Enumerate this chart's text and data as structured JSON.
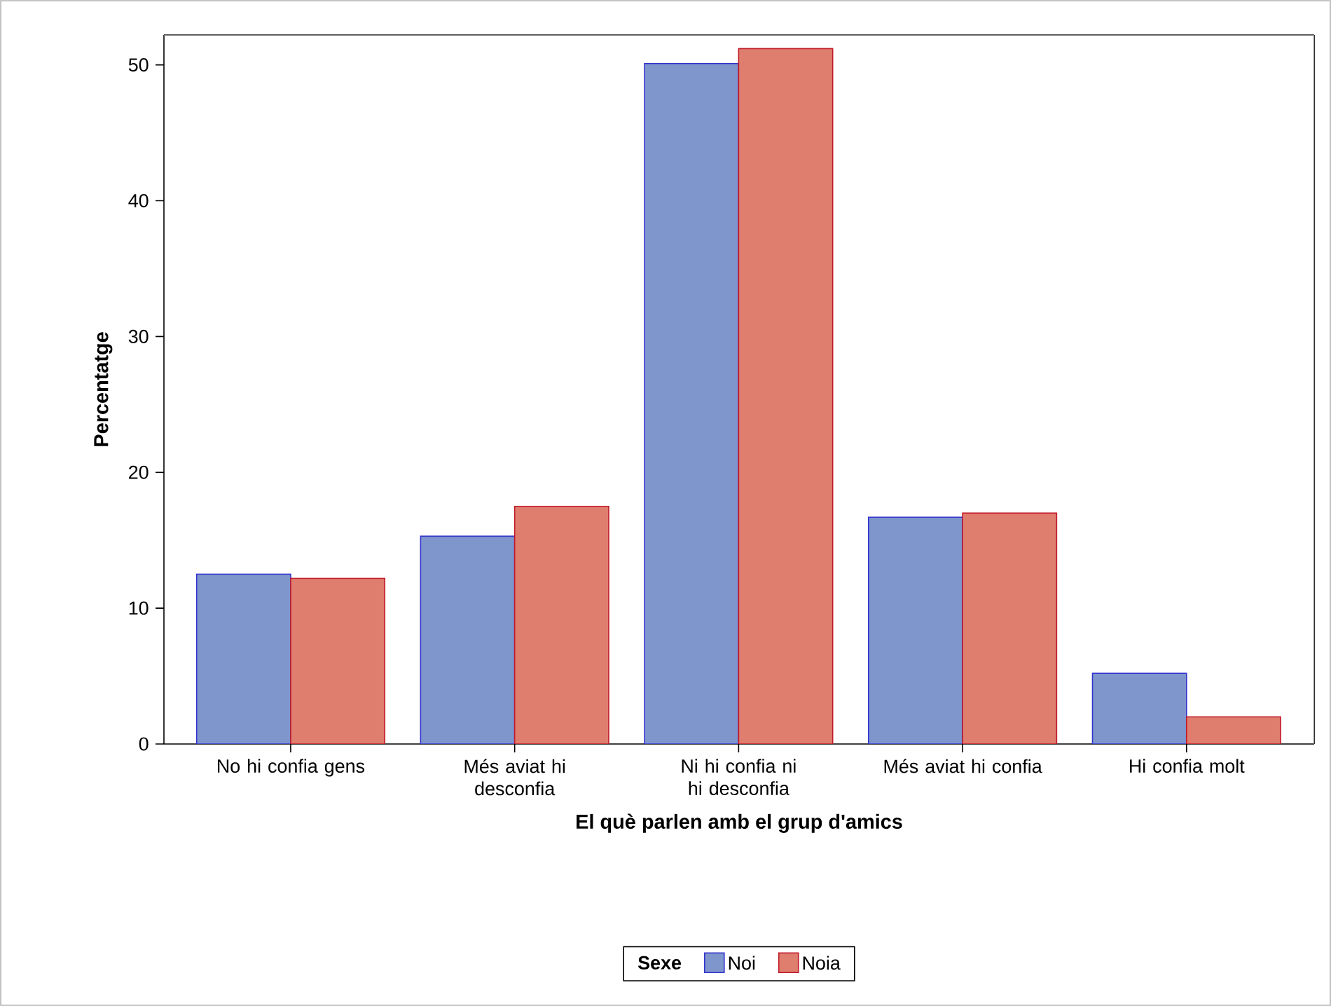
{
  "chart_data": {
    "type": "bar",
    "xlabel": "El què parlen amb el grup d'amics",
    "ylabel": "Percentatge",
    "categories": [
      "No hi confia gens",
      "Més aviat hi desconfia",
      "Ni hi confia ni hi desconfia",
      "Més aviat hi confia",
      "Hi confia molt"
    ],
    "series": [
      {
        "name": "Noi",
        "color": "#7f96cd",
        "values": [
          12.5,
          15.3,
          50.1,
          16.7,
          5.2
        ]
      },
      {
        "name": "Noia",
        "color": "#df7e6e",
        "values": [
          12.2,
          17.5,
          51.2,
          17.0,
          2.0
        ]
      }
    ],
    "legend_title": "Sexe",
    "legend": "bottom",
    "ylim": [
      0,
      52.2
    ],
    "yticks": [
      0,
      10,
      20,
      30,
      40,
      50
    ],
    "grid": false
  }
}
